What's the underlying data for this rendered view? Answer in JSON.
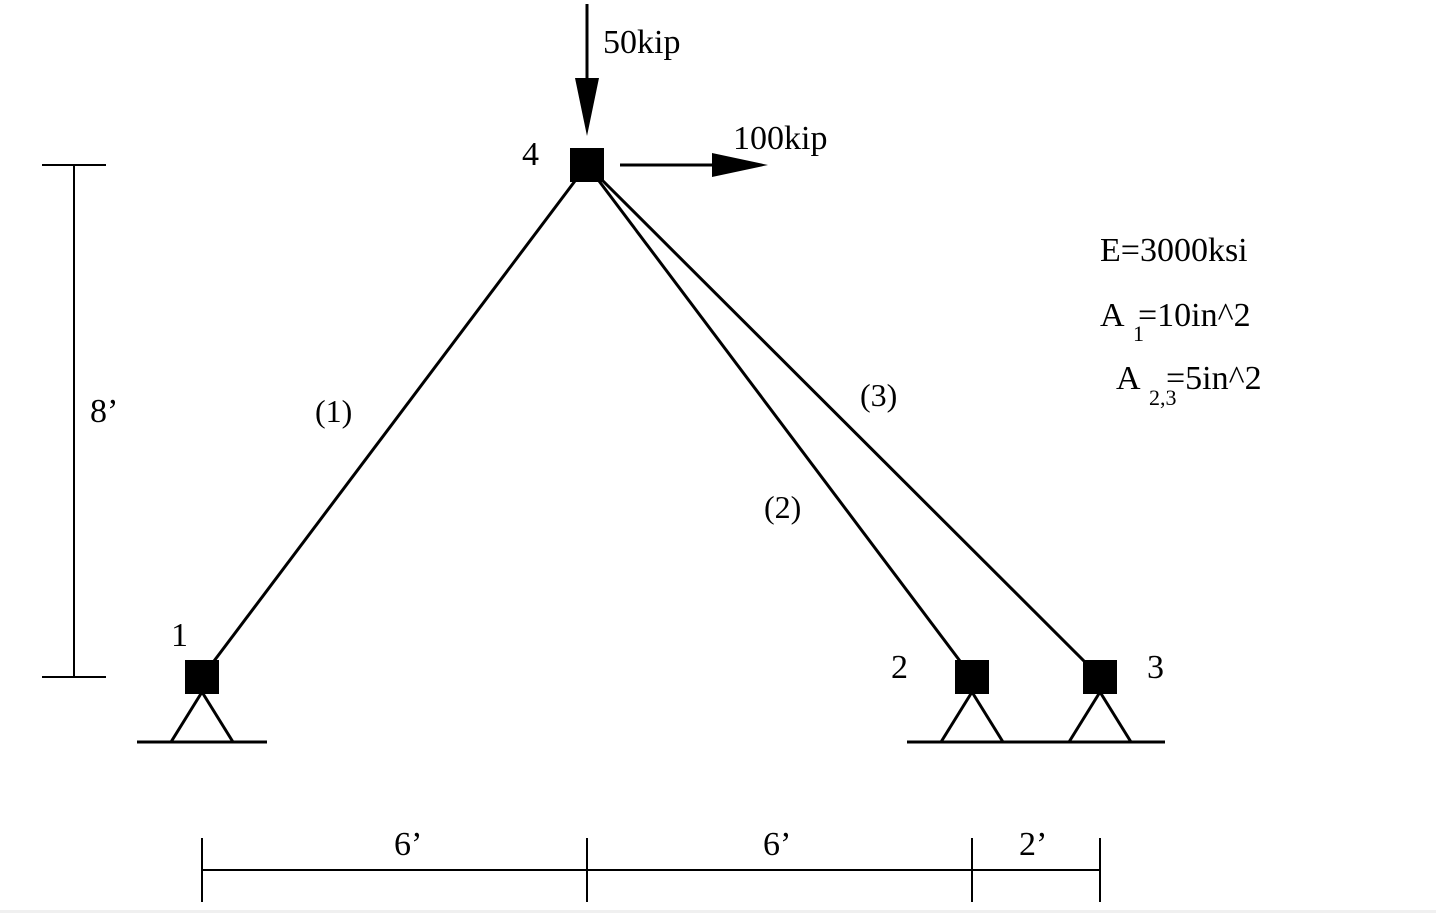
{
  "diagram": {
    "loads": {
      "vertical": "50kip",
      "horizontal": "100kip"
    },
    "nodes": {
      "n1": "1",
      "n2": "2",
      "n3": "3",
      "n4": "4"
    },
    "members": {
      "m1": "(1)",
      "m2": "(2)",
      "m3": "(3)"
    },
    "dimensions": {
      "height": "8’",
      "span_1": "6’",
      "span_2": "6’",
      "span_3": "2’"
    },
    "properties": {
      "modulus": "E=3000ksi",
      "area1_symbol": "A",
      "area1_subscript": "1",
      "area1_value": "=10in^2",
      "area23_symbol": "A",
      "area23_subscript": "2,3",
      "area23_value": "=5in^2"
    }
  }
}
